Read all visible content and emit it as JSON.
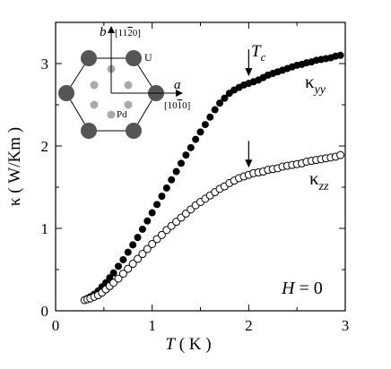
{
  "chart_data": {
    "type": "scatter",
    "title": "",
    "xlabel": {
      "var": "T",
      "unit": " ( K )"
    },
    "ylabel": "κ  ( W/Km )",
    "xlim": [
      0,
      3
    ],
    "ylim": [
      0,
      3.5
    ],
    "xticks": [
      "0",
      "1",
      "2",
      "3"
    ],
    "yticks": [
      "0",
      "1",
      "2",
      "3"
    ],
    "series": [
      {
        "name_main": "κ",
        "name_sub": "yy",
        "marker": "filled-circle",
        "points": [
          [
            0.3,
            0.13
          ],
          [
            0.33,
            0.15
          ],
          [
            0.36,
            0.17
          ],
          [
            0.4,
            0.2
          ],
          [
            0.44,
            0.24
          ],
          [
            0.48,
            0.29
          ],
          [
            0.52,
            0.34
          ],
          [
            0.56,
            0.4
          ],
          [
            0.6,
            0.46
          ],
          [
            0.65,
            0.54
          ],
          [
            0.7,
            0.62
          ],
          [
            0.75,
            0.71
          ],
          [
            0.8,
            0.8
          ],
          [
            0.85,
            0.89
          ],
          [
            0.9,
            0.99
          ],
          [
            0.95,
            1.09
          ],
          [
            1.0,
            1.19
          ],
          [
            1.05,
            1.29
          ],
          [
            1.1,
            1.39
          ],
          [
            1.15,
            1.49
          ],
          [
            1.2,
            1.59
          ],
          [
            1.25,
            1.69
          ],
          [
            1.3,
            1.79
          ],
          [
            1.35,
            1.89
          ],
          [
            1.4,
            1.98
          ],
          [
            1.45,
            2.08
          ],
          [
            1.5,
            2.17
          ],
          [
            1.55,
            2.26
          ],
          [
            1.6,
            2.35
          ],
          [
            1.65,
            2.44
          ],
          [
            1.7,
            2.52
          ],
          [
            1.75,
            2.58
          ],
          [
            1.8,
            2.64
          ],
          [
            1.85,
            2.68
          ],
          [
            1.9,
            2.71
          ],
          [
            1.95,
            2.74
          ],
          [
            2.0,
            2.76
          ],
          [
            2.05,
            2.78
          ],
          [
            2.1,
            2.8
          ],
          [
            2.15,
            2.83
          ],
          [
            2.2,
            2.86
          ],
          [
            2.25,
            2.88
          ],
          [
            2.3,
            2.9
          ],
          [
            2.35,
            2.92
          ],
          [
            2.4,
            2.94
          ],
          [
            2.45,
            2.96
          ],
          [
            2.5,
            2.98
          ],
          [
            2.55,
            2.99
          ],
          [
            2.6,
            3.01
          ],
          [
            2.65,
            3.02
          ],
          [
            2.7,
            3.04
          ],
          [
            2.75,
            3.05
          ],
          [
            2.8,
            3.06
          ],
          [
            2.85,
            3.07
          ],
          [
            2.9,
            3.09
          ],
          [
            2.95,
            3.1
          ]
        ]
      },
      {
        "name_main": "κ",
        "name_sub": "zz",
        "marker": "open-circle",
        "points": [
          [
            0.3,
            0.13
          ],
          [
            0.33,
            0.14
          ],
          [
            0.36,
            0.15
          ],
          [
            0.4,
            0.17
          ],
          [
            0.44,
            0.19
          ],
          [
            0.48,
            0.22
          ],
          [
            0.52,
            0.26
          ],
          [
            0.56,
            0.3
          ],
          [
            0.6,
            0.34
          ],
          [
            0.65,
            0.39
          ],
          [
            0.7,
            0.45
          ],
          [
            0.75,
            0.51
          ],
          [
            0.8,
            0.57
          ],
          [
            0.85,
            0.63
          ],
          [
            0.9,
            0.69
          ],
          [
            0.95,
            0.75
          ],
          [
            1.0,
            0.81
          ],
          [
            1.05,
            0.87
          ],
          [
            1.1,
            0.92
          ],
          [
            1.15,
            0.98
          ],
          [
            1.2,
            1.03
          ],
          [
            1.25,
            1.08
          ],
          [
            1.3,
            1.13
          ],
          [
            1.35,
            1.18
          ],
          [
            1.4,
            1.23
          ],
          [
            1.45,
            1.28
          ],
          [
            1.5,
            1.32
          ],
          [
            1.55,
            1.36
          ],
          [
            1.6,
            1.4
          ],
          [
            1.65,
            1.44
          ],
          [
            1.7,
            1.48
          ],
          [
            1.75,
            1.51
          ],
          [
            1.8,
            1.55
          ],
          [
            1.85,
            1.58
          ],
          [
            1.9,
            1.61
          ],
          [
            1.95,
            1.63
          ],
          [
            2.0,
            1.65
          ],
          [
            2.05,
            1.67
          ],
          [
            2.1,
            1.68
          ],
          [
            2.15,
            1.69
          ],
          [
            2.2,
            1.71
          ],
          [
            2.25,
            1.72
          ],
          [
            2.3,
            1.73
          ],
          [
            2.35,
            1.75
          ],
          [
            2.4,
            1.76
          ],
          [
            2.45,
            1.77
          ],
          [
            2.5,
            1.78
          ],
          [
            2.55,
            1.79
          ],
          [
            2.6,
            1.81
          ],
          [
            2.65,
            1.82
          ],
          [
            2.7,
            1.83
          ],
          [
            2.75,
            1.84
          ],
          [
            2.8,
            1.85
          ],
          [
            2.85,
            1.86
          ],
          [
            2.9,
            1.87
          ],
          [
            2.95,
            1.89
          ]
        ]
      }
    ],
    "annotations": {
      "tc_label": "T",
      "tc_sub": "c",
      "arrows_at": [
        {
          "x": 2.0,
          "y": 2.77,
          "label": "Tc"
        },
        {
          "x": 2.0,
          "y": 1.66
        }
      ],
      "field_var": "H",
      "field_rest": " = 0"
    },
    "inset": {
      "axis_a": "a",
      "axis_b": "b",
      "dir_a": "[10",
      "dir_a_bar": "1",
      "dir_a_end": "0]",
      "dir_b": "[11",
      "dir_b_bar": "2",
      "dir_b_end": "0]",
      "label_u": "U",
      "label_pd": "Pd"
    },
    "colors": {
      "ink": "#000000",
      "u_atom": "#555555",
      "pd_atom": "#aaaaaa"
    }
  }
}
